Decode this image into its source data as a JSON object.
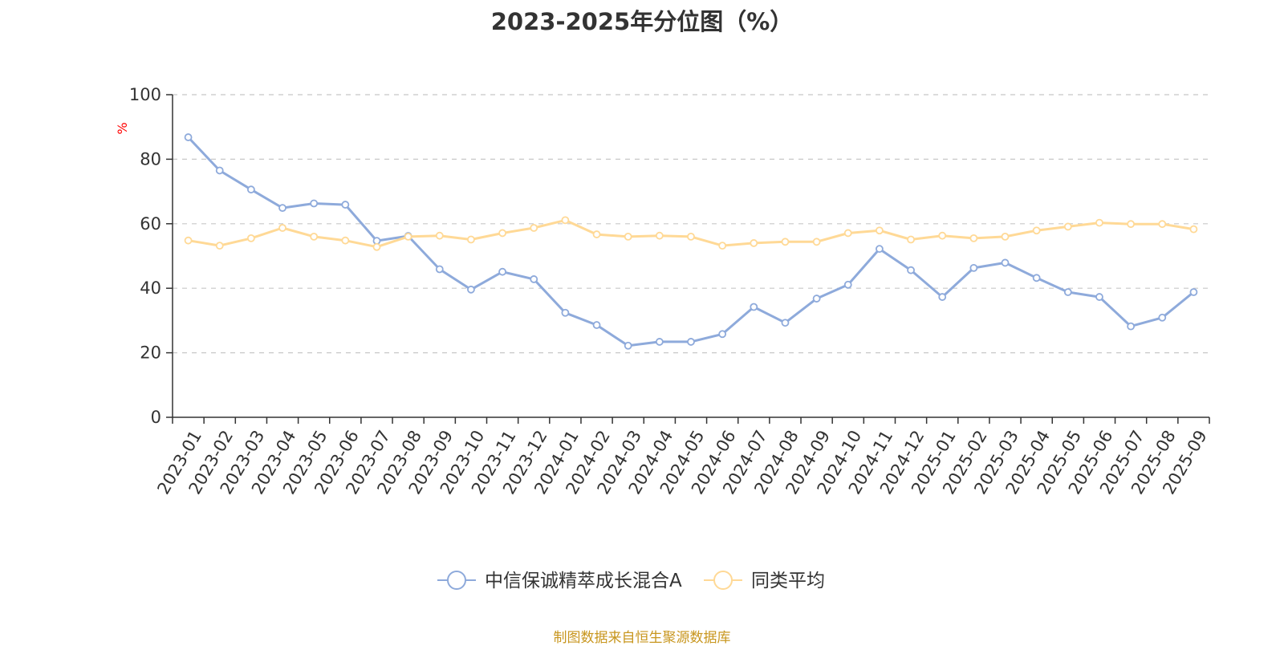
{
  "chart_data": {
    "type": "line",
    "title": "2023-2025年分位图（%）",
    "ylabel": "%",
    "xlabel": "",
    "ylim": [
      0,
      100
    ],
    "yticks": [
      0,
      20,
      40,
      60,
      80,
      100
    ],
    "grid": true,
    "legend_position": "bottom",
    "categories": [
      "2023-01",
      "2023-02",
      "2023-03",
      "2023-04",
      "2023-05",
      "2023-06",
      "2023-07",
      "2023-08",
      "2023-09",
      "2023-10",
      "2023-11",
      "2023-12",
      "2024-01",
      "2024-02",
      "2024-03",
      "2024-04",
      "2024-05",
      "2024-06",
      "2024-07",
      "2024-08",
      "2024-09",
      "2024-10",
      "2024-11",
      "2024-12",
      "2025-01",
      "2025-02",
      "2025-03",
      "2025-04",
      "2025-05",
      "2025-06",
      "2025-07",
      "2025-08",
      "2025-09"
    ],
    "series": [
      {
        "name": "中信保诚精萃成长混合A",
        "color": "#8eaadb",
        "values": [
          86.8,
          76.5,
          70.6,
          64.9,
          66.3,
          65.9,
          54.7,
          56.2,
          45.9,
          39.6,
          45.1,
          42.8,
          32.4,
          28.6,
          22.2,
          23.4,
          23.4,
          25.8,
          34.2,
          29.3,
          36.8,
          41.1,
          52.2,
          45.6,
          37.3,
          46.3,
          47.9,
          43.2,
          38.8,
          37.3,
          28.2,
          30.9,
          38.8
        ]
      },
      {
        "name": "同类平均",
        "color": "#ffd996",
        "values": [
          54.8,
          53.2,
          55.5,
          58.7,
          56.0,
          54.8,
          52.8,
          56.0,
          56.3,
          55.1,
          57.1,
          58.7,
          61.1,
          56.7,
          56.0,
          56.3,
          56.0,
          53.2,
          54.0,
          54.4,
          54.4,
          57.1,
          57.9,
          55.1,
          56.3,
          55.5,
          56.0,
          57.9,
          59.1,
          60.3,
          59.9,
          59.9,
          58.3
        ]
      }
    ],
    "source": "制图数据来自恒生聚源数据库",
    "source_color": "#c8961e",
    "ylabel_color": "#ff0000"
  }
}
